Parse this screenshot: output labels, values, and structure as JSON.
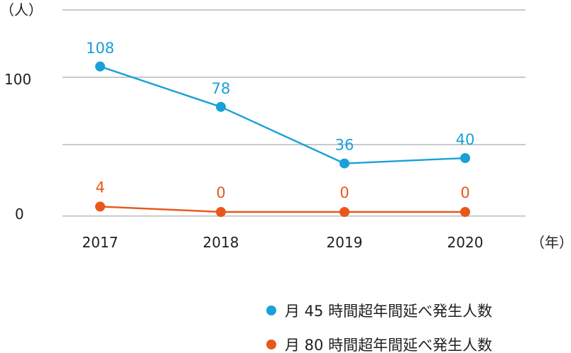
{
  "chart_data": {
    "type": "line",
    "x": [
      "2017",
      "2018",
      "2019",
      "2020"
    ],
    "ylim": [
      0,
      100
    ],
    "y_ticks": [
      "100",
      "0"
    ],
    "y_unit_label": "（人）",
    "x_unit_label": "（年）",
    "series": [
      {
        "name": "月 45 時間超年間延べ発生人数",
        "color": "#1aa0d8",
        "values": [
          108,
          78,
          36,
          40
        ],
        "value_labels": [
          "108",
          "78",
          "36",
          "40"
        ]
      },
      {
        "name": "月 80 時間超年間延べ発生人数",
        "color": "#e8581b",
        "values": [
          4,
          0,
          0,
          0
        ],
        "value_labels": [
          "4",
          "0",
          "0",
          "0"
        ]
      }
    ],
    "grid": true,
    "legend_position": "bottom-right"
  }
}
